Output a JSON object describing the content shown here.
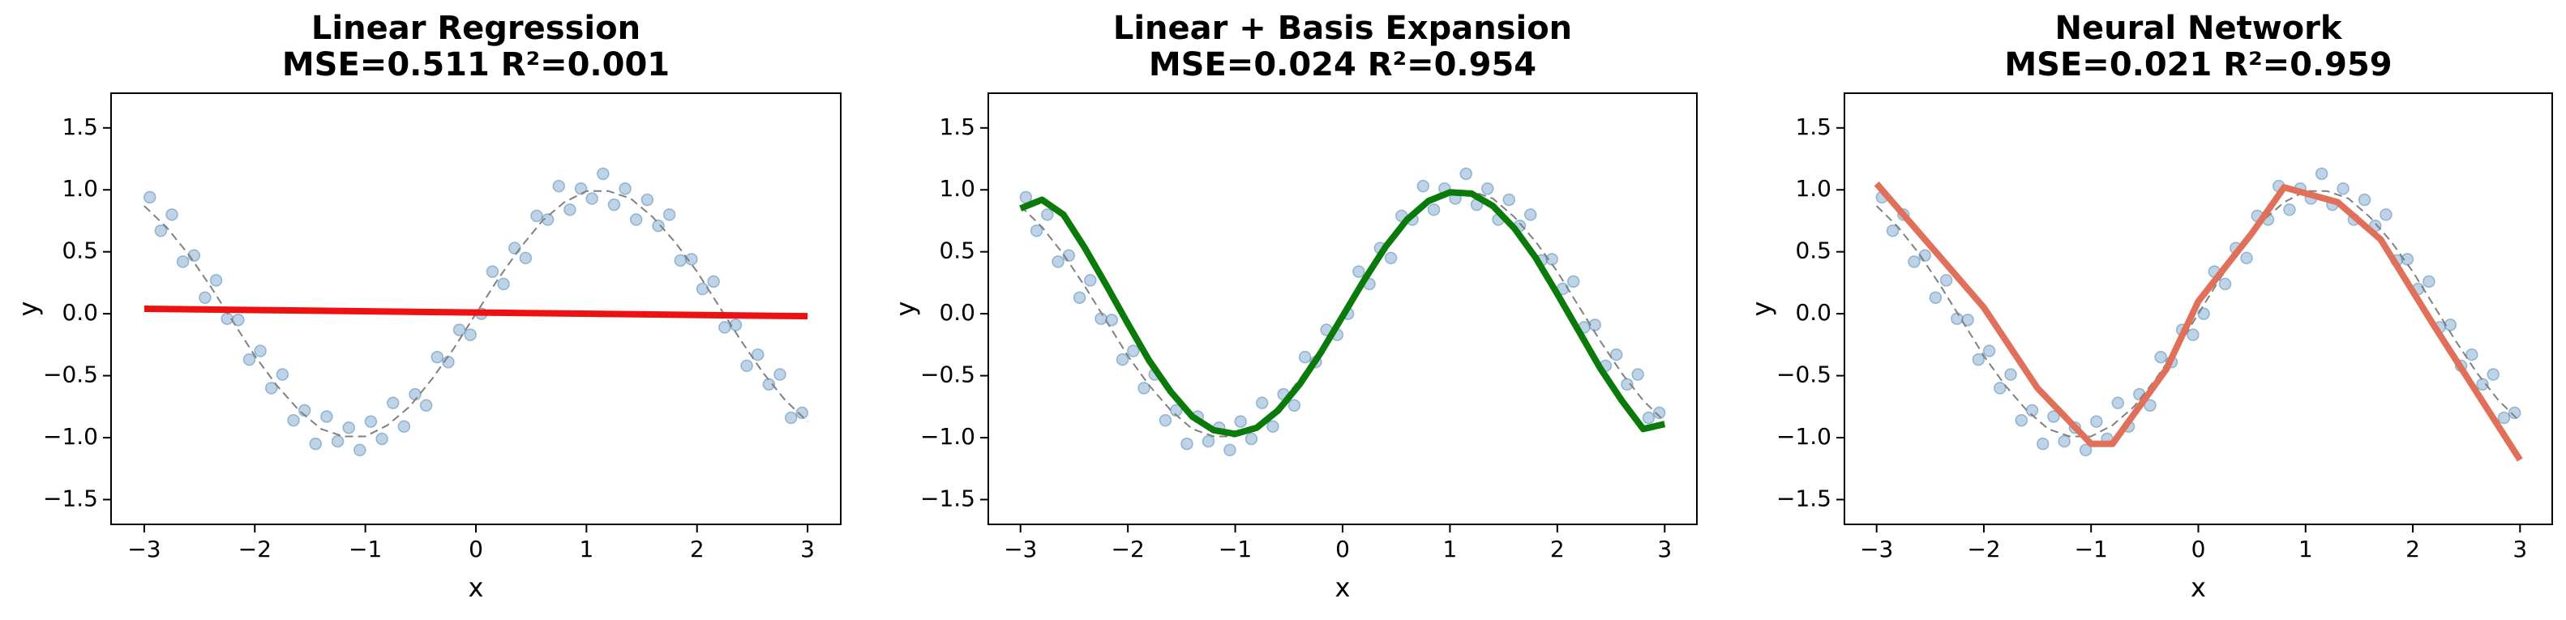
{
  "chart_data": [
    {
      "type": "line",
      "title": "Linear Regression",
      "subtitle": "MSE=0.511  R²=0.001",
      "xlabel": "x",
      "ylabel": "y",
      "xlim": [
        -3.3,
        3.3
      ],
      "ylim": [
        -1.7,
        1.78
      ],
      "xticks": [
        {
          "value": -3,
          "label": "−3"
        },
        {
          "value": -2,
          "label": "−2"
        },
        {
          "value": -1,
          "label": "−1"
        },
        0,
        1,
        2,
        3
      ],
      "yticks": [
        {
          "value": -1.5,
          "label": "−1.5"
        },
        {
          "value": -1,
          "label": "−1.0"
        },
        {
          "value": -0.5,
          "label": "−0.5"
        },
        {
          "value": 0,
          "label": "0.0"
        },
        {
          "value": 0.5,
          "label": "0.5"
        },
        {
          "value": 1,
          "label": "1.0"
        },
        1.5
      ],
      "series": [
        {
          "style": "points",
          "color": "#4682b4",
          "x": [
            -2.95,
            -2.85,
            -2.75,
            -2.65,
            -2.55,
            -2.45,
            -2.35,
            -2.25,
            -2.15,
            -2.05,
            -1.95,
            -1.85,
            -1.75,
            -1.65,
            -1.55,
            -1.45,
            -1.35,
            -1.25,
            -1.15,
            -1.05,
            -0.95,
            -0.85,
            -0.75,
            -0.65,
            -0.55,
            -0.45,
            -0.35,
            -0.25,
            -0.15,
            -0.05,
            0.05,
            0.15,
            0.25,
            0.35,
            0.45,
            0.55,
            0.65,
            0.75,
            0.85,
            0.95,
            1.05,
            1.15,
            1.25,
            1.35,
            1.45,
            1.55,
            1.65,
            1.75,
            1.85,
            1.95,
            2.05,
            2.15,
            2.25,
            2.35,
            2.45,
            2.55,
            2.65,
            2.75,
            2.85,
            2.95
          ],
          "values": [
            0.94,
            0.67,
            0.8,
            0.42,
            0.47,
            0.13,
            0.27,
            -0.04,
            -0.05,
            -0.37,
            -0.3,
            -0.6,
            -0.49,
            -0.86,
            -0.78,
            -1.05,
            -0.83,
            -1.03,
            -0.92,
            -1.1,
            -0.87,
            -1.01,
            -0.72,
            -0.91,
            -0.65,
            -0.74,
            -0.35,
            -0.39,
            -0.13,
            -0.17,
            0,
            0.34,
            0.24,
            0.53,
            0.45,
            0.79,
            0.76,
            1.03,
            0.84,
            1.01,
            0.93,
            1.13,
            0.88,
            1.01,
            0.76,
            0.92,
            0.71,
            0.8,
            0.43,
            0.44,
            0.2,
            0.26,
            -0.11,
            -0.09,
            -0.42,
            -0.33,
            -0.57,
            -0.49,
            -0.84,
            -0.8
          ]
        },
        {
          "style": "dashed",
          "color": "#808080",
          "x": [
            -3,
            -2.8,
            -2.6,
            -2.4,
            -2.2,
            -2,
            -1.8,
            -1.6,
            -1.4,
            -1.2,
            -1,
            -0.8,
            -0.6,
            -0.4,
            -0.2,
            0,
            0.2,
            0.4,
            0.6,
            0.8,
            1,
            1.2,
            1.4,
            1.6,
            1.8,
            2,
            2.2,
            2.4,
            2.6,
            2.8,
            3
          ],
          "values": [
            0.87,
            0.7,
            0.48,
            0.22,
            -0.06,
            -0.34,
            -0.58,
            -0.78,
            -0.93,
            -0.99,
            -0.99,
            -0.9,
            -0.75,
            -0.53,
            -0.28,
            0,
            0.28,
            0.53,
            0.75,
            0.9,
            0.99,
            0.99,
            0.93,
            0.78,
            0.58,
            0.34,
            0.06,
            -0.22,
            -0.48,
            -0.7,
            -0.87
          ]
        },
        {
          "style": "solid",
          "color": "#ee1111",
          "x": [
            -3,
            3
          ],
          "values": [
            0.04,
            -0.02
          ]
        }
      ]
    },
    {
      "type": "line",
      "title": "Linear + Basis Expansion",
      "subtitle": "MSE=0.024  R²=0.954",
      "xlabel": "x",
      "ylabel": "y",
      "xlim": [
        -3.3,
        3.3
      ],
      "ylim": [
        -1.7,
        1.78
      ],
      "xticks": [
        {
          "value": -3,
          "label": "−3"
        },
        {
          "value": -2,
          "label": "−2"
        },
        {
          "value": -1,
          "label": "−1"
        },
        0,
        1,
        2,
        3
      ],
      "yticks": [
        {
          "value": -1.5,
          "label": "−1.5"
        },
        {
          "value": -1,
          "label": "−1.0"
        },
        {
          "value": -0.5,
          "label": "−0.5"
        },
        {
          "value": 0,
          "label": "0.0"
        },
        {
          "value": 0.5,
          "label": "0.5"
        },
        {
          "value": 1,
          "label": "1.0"
        },
        1.5
      ],
      "series": [
        {
          "style": "points",
          "color": "#4682b4",
          "x": [
            -2.95,
            -2.85,
            -2.75,
            -2.65,
            -2.55,
            -2.45,
            -2.35,
            -2.25,
            -2.15,
            -2.05,
            -1.95,
            -1.85,
            -1.75,
            -1.65,
            -1.55,
            -1.45,
            -1.35,
            -1.25,
            -1.15,
            -1.05,
            -0.95,
            -0.85,
            -0.75,
            -0.65,
            -0.55,
            -0.45,
            -0.35,
            -0.25,
            -0.15,
            -0.05,
            0.05,
            0.15,
            0.25,
            0.35,
            0.45,
            0.55,
            0.65,
            0.75,
            0.85,
            0.95,
            1.05,
            1.15,
            1.25,
            1.35,
            1.45,
            1.55,
            1.65,
            1.75,
            1.85,
            1.95,
            2.05,
            2.15,
            2.25,
            2.35,
            2.45,
            2.55,
            2.65,
            2.75,
            2.85,
            2.95
          ],
          "values": [
            0.94,
            0.67,
            0.8,
            0.42,
            0.47,
            0.13,
            0.27,
            -0.04,
            -0.05,
            -0.37,
            -0.3,
            -0.6,
            -0.49,
            -0.86,
            -0.78,
            -1.05,
            -0.83,
            -1.03,
            -0.92,
            -1.1,
            -0.87,
            -1.01,
            -0.72,
            -0.91,
            -0.65,
            -0.74,
            -0.35,
            -0.39,
            -0.13,
            -0.17,
            0,
            0.34,
            0.24,
            0.53,
            0.45,
            0.79,
            0.76,
            1.03,
            0.84,
            1.01,
            0.93,
            1.13,
            0.88,
            1.01,
            0.76,
            0.92,
            0.71,
            0.8,
            0.43,
            0.44,
            0.2,
            0.26,
            -0.11,
            -0.09,
            -0.42,
            -0.33,
            -0.57,
            -0.49,
            -0.84,
            -0.8
          ]
        },
        {
          "style": "dashed",
          "color": "#808080",
          "x": [
            -3,
            -2.8,
            -2.6,
            -2.4,
            -2.2,
            -2,
            -1.8,
            -1.6,
            -1.4,
            -1.2,
            -1,
            -0.8,
            -0.6,
            -0.4,
            -0.2,
            0,
            0.2,
            0.4,
            0.6,
            0.8,
            1,
            1.2,
            1.4,
            1.6,
            1.8,
            2,
            2.2,
            2.4,
            2.6,
            2.8,
            3
          ],
          "values": [
            0.87,
            0.7,
            0.48,
            0.22,
            -0.06,
            -0.34,
            -0.58,
            -0.78,
            -0.93,
            -0.99,
            -0.99,
            -0.9,
            -0.75,
            -0.53,
            -0.28,
            0,
            0.28,
            0.53,
            0.75,
            0.9,
            0.99,
            0.99,
            0.93,
            0.78,
            0.58,
            0.34,
            0.06,
            -0.22,
            -0.48,
            -0.7,
            -0.87
          ]
        },
        {
          "style": "solid",
          "color": "#0a7a0a",
          "x": [
            -3,
            -2.8,
            -2.6,
            -2.4,
            -2.2,
            -2,
            -1.8,
            -1.6,
            -1.4,
            -1.2,
            -1,
            -0.8,
            -0.6,
            -0.4,
            -0.2,
            0,
            0.2,
            0.4,
            0.6,
            0.8,
            1,
            1.2,
            1.4,
            1.6,
            1.8,
            2,
            2.2,
            2.4,
            2.6,
            2.8,
            3
          ],
          "values": [
            0.85,
            0.92,
            0.8,
            0.53,
            0.23,
            -0.08,
            -0.38,
            -0.63,
            -0.83,
            -0.94,
            -0.97,
            -0.92,
            -0.78,
            -0.57,
            -0.31,
            -0.02,
            0.27,
            0.54,
            0.76,
            0.91,
            0.98,
            0.97,
            0.87,
            0.69,
            0.45,
            0.16,
            -0.14,
            -0.44,
            -0.7,
            -0.93,
            -0.89
          ]
        }
      ]
    },
    {
      "type": "line",
      "title": "Neural Network",
      "subtitle": "MSE=0.021  R²=0.959",
      "xlabel": "x",
      "ylabel": "y",
      "xlim": [
        -3.3,
        3.3
      ],
      "ylim": [
        -1.7,
        1.78
      ],
      "xticks": [
        {
          "value": -3,
          "label": "−3"
        },
        {
          "value": -2,
          "label": "−2"
        },
        {
          "value": -1,
          "label": "−1"
        },
        0,
        1,
        2,
        3
      ],
      "yticks": [
        {
          "value": -1.5,
          "label": "−1.5"
        },
        {
          "value": -1,
          "label": "−1.0"
        },
        {
          "value": -0.5,
          "label": "−0.5"
        },
        {
          "value": 0,
          "label": "0.0"
        },
        {
          "value": 0.5,
          "label": "0.5"
        },
        {
          "value": 1,
          "label": "1.0"
        },
        1.5
      ],
      "series": [
        {
          "style": "points",
          "color": "#4682b4",
          "x": [
            -2.95,
            -2.85,
            -2.75,
            -2.65,
            -2.55,
            -2.45,
            -2.35,
            -2.25,
            -2.15,
            -2.05,
            -1.95,
            -1.85,
            -1.75,
            -1.65,
            -1.55,
            -1.45,
            -1.35,
            -1.25,
            -1.15,
            -1.05,
            -0.95,
            -0.85,
            -0.75,
            -0.65,
            -0.55,
            -0.45,
            -0.35,
            -0.25,
            -0.15,
            -0.05,
            0.05,
            0.15,
            0.25,
            0.35,
            0.45,
            0.55,
            0.65,
            0.75,
            0.85,
            0.95,
            1.05,
            1.15,
            1.25,
            1.35,
            1.45,
            1.55,
            1.65,
            1.75,
            1.85,
            1.95,
            2.05,
            2.15,
            2.25,
            2.35,
            2.45,
            2.55,
            2.65,
            2.75,
            2.85,
            2.95
          ],
          "values": [
            0.94,
            0.67,
            0.8,
            0.42,
            0.47,
            0.13,
            0.27,
            -0.04,
            -0.05,
            -0.37,
            -0.3,
            -0.6,
            -0.49,
            -0.86,
            -0.78,
            -1.05,
            -0.83,
            -1.03,
            -0.92,
            -1.1,
            -0.87,
            -1.01,
            -0.72,
            -0.91,
            -0.65,
            -0.74,
            -0.35,
            -0.39,
            -0.13,
            -0.17,
            0,
            0.34,
            0.24,
            0.53,
            0.45,
            0.79,
            0.76,
            1.03,
            0.84,
            1.01,
            0.93,
            1.13,
            0.88,
            1.01,
            0.76,
            0.92,
            0.71,
            0.8,
            0.43,
            0.44,
            0.2,
            0.26,
            -0.11,
            -0.09,
            -0.42,
            -0.33,
            -0.57,
            -0.49,
            -0.84,
            -0.8
          ]
        },
        {
          "style": "dashed",
          "color": "#808080",
          "x": [
            -3,
            -2.8,
            -2.6,
            -2.4,
            -2.2,
            -2,
            -1.8,
            -1.6,
            -1.4,
            -1.2,
            -1,
            -0.8,
            -0.6,
            -0.4,
            -0.2,
            0,
            0.2,
            0.4,
            0.6,
            0.8,
            1,
            1.2,
            1.4,
            1.6,
            1.8,
            2,
            2.2,
            2.4,
            2.6,
            2.8,
            3
          ],
          "values": [
            0.87,
            0.7,
            0.48,
            0.22,
            -0.06,
            -0.34,
            -0.58,
            -0.78,
            -0.93,
            -0.99,
            -0.99,
            -0.9,
            -0.75,
            -0.53,
            -0.28,
            0,
            0.28,
            0.53,
            0.75,
            0.9,
            0.99,
            0.99,
            0.93,
            0.78,
            0.58,
            0.34,
            0.06,
            -0.22,
            -0.48,
            -0.7,
            -0.87
          ]
        },
        {
          "style": "solid",
          "color": "#e0705a",
          "x": [
            -3,
            -2,
            -1.5,
            -1,
            -0.8,
            -0.3,
            0,
            0.5,
            0.8,
            1.3,
            1.7,
            2.2,
            3
          ],
          "values": [
            1.05,
            0.05,
            -0.6,
            -1.05,
            -1.05,
            -0.45,
            0.1,
            0.65,
            1.02,
            0.9,
            0.6,
            -0.1,
            -1.18
          ]
        }
      ]
    }
  ]
}
